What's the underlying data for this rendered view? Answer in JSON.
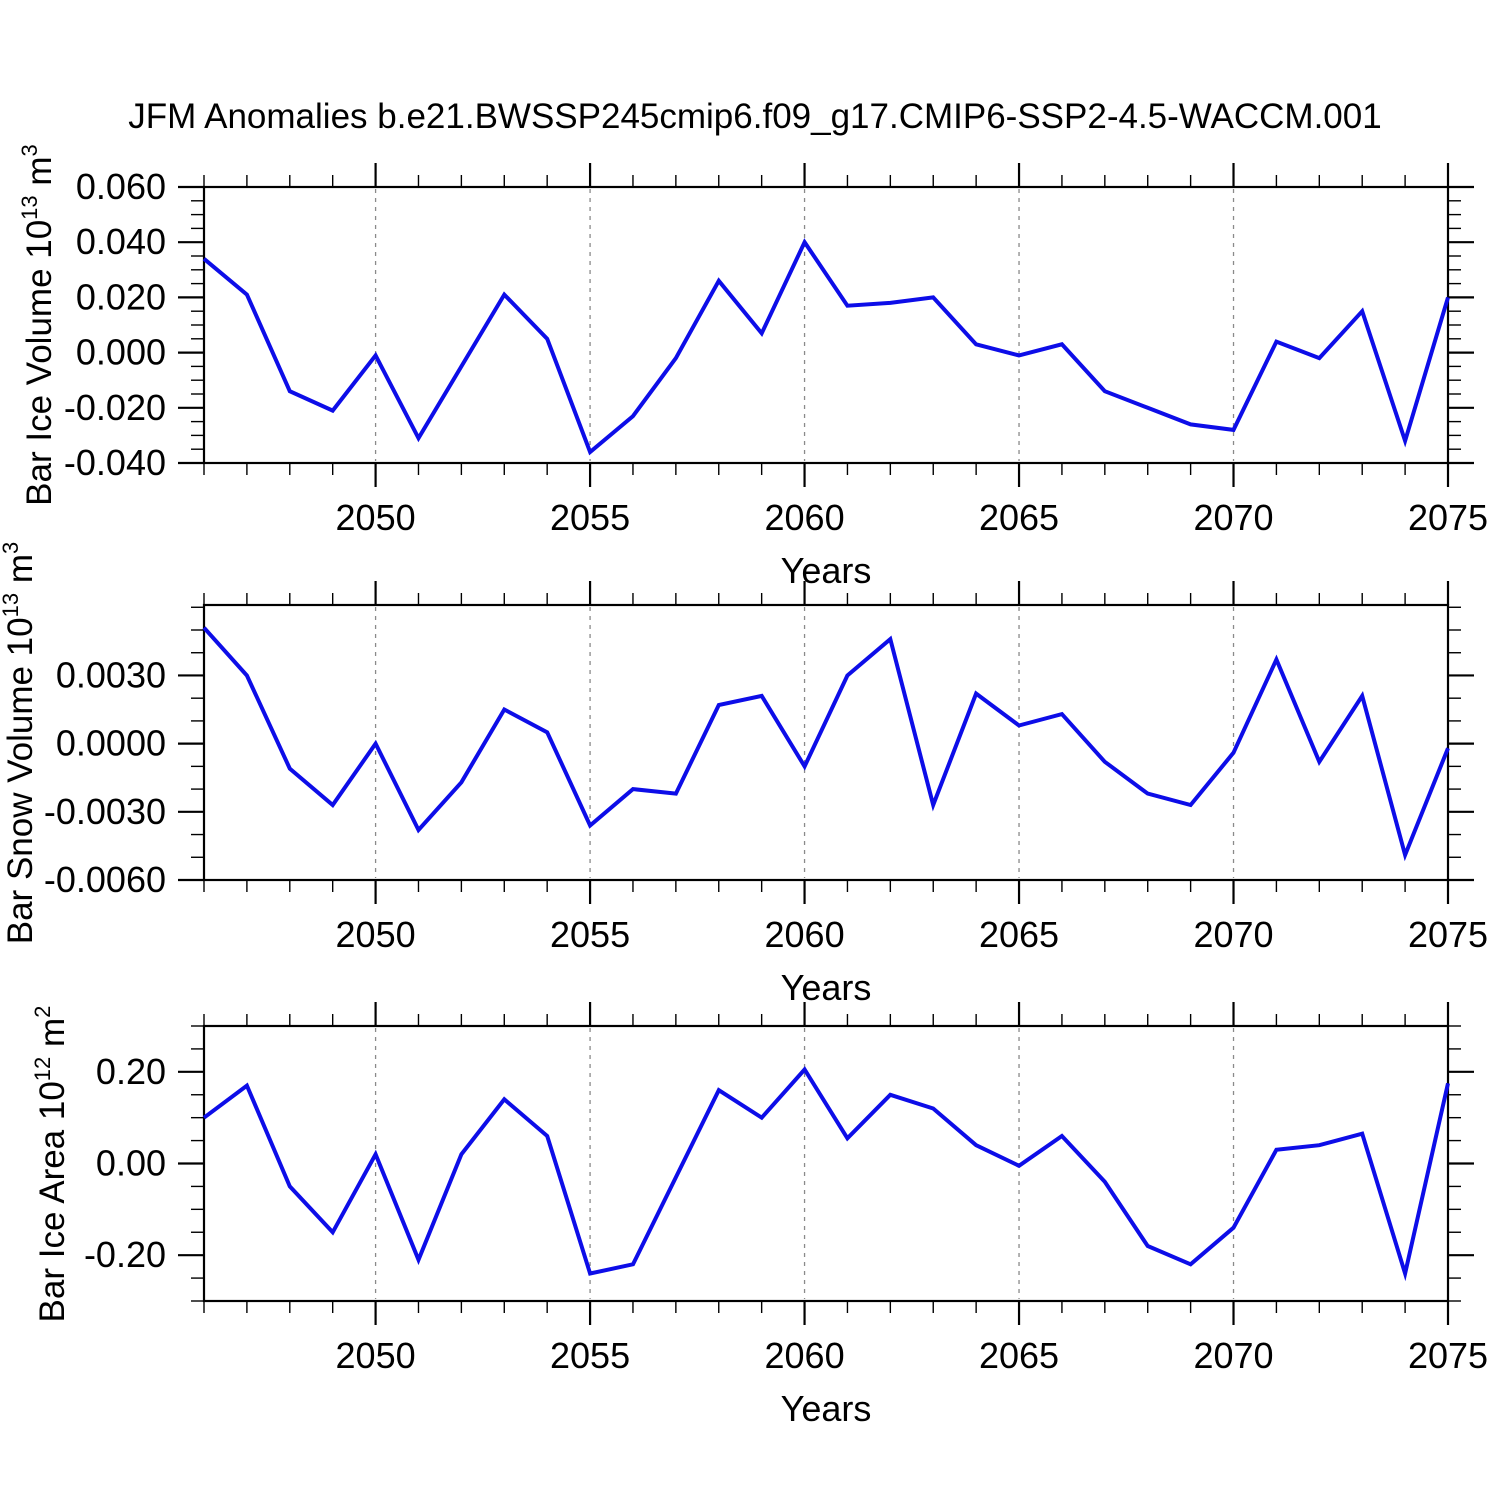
{
  "title": "JFM Anomalies b.e21.BWSSP245cmip6.f09_g17.CMIP6-SSP2-4.5-WACCM.001",
  "colors": {
    "line": "#0d0de8",
    "axis": "#000000",
    "grid": "#8a8a8a",
    "background": "#ffffff"
  },
  "x_axis": {
    "label": "Years",
    "years": [
      2046,
      2047,
      2048,
      2049,
      2050,
      2051,
      2052,
      2053,
      2054,
      2055,
      2056,
      2057,
      2058,
      2059,
      2060,
      2061,
      2062,
      2063,
      2064,
      2065,
      2066,
      2067,
      2068,
      2069,
      2070,
      2071,
      2072,
      2073,
      2074,
      2075
    ],
    "major_tick_years": [
      2050,
      2055,
      2060,
      2065,
      2070,
      2075
    ],
    "gridline_years": [
      2050,
      2055,
      2060,
      2065,
      2070
    ],
    "minor_tick_step_years": 1
  },
  "chart_data": [
    {
      "type": "line",
      "ylabel": "Bar Ice Volume 10^13 m^3",
      "ylabel_parts": {
        "main": "Bar Ice Volume 10",
        "exp": "13",
        "unit": " m",
        "unit_exp": "3"
      },
      "ylim": [
        -0.04,
        0.06
      ],
      "yticks": [
        0.06,
        0.04,
        0.02,
        0.0,
        -0.02,
        -0.04
      ],
      "ytick_labels": [
        "0.060",
        "0.040",
        "0.020",
        "0.000",
        "-0.020",
        "-0.040"
      ],
      "y_minor_step": 0.005,
      "values": [
        0.034,
        0.021,
        -0.014,
        -0.021,
        -0.001,
        -0.031,
        -0.005,
        0.021,
        0.005,
        -0.036,
        -0.023,
        -0.002,
        0.026,
        0.007,
        0.04,
        0.017,
        0.018,
        0.02,
        0.003,
        -0.001,
        0.003,
        -0.014,
        -0.02,
        -0.026,
        -0.028,
        0.004,
        -0.002,
        0.015,
        -0.032,
        0.02
      ]
    },
    {
      "type": "line",
      "ylabel": "Bar Snow Volume 10^13 m^3",
      "ylabel_parts": {
        "main": "Bar Snow Volume 10",
        "exp": "13",
        "unit": " m",
        "unit_exp": "3"
      },
      "ylim": [
        -0.006,
        0.0061
      ],
      "yticks": [
        0.003,
        0.0,
        -0.003,
        -0.006
      ],
      "ytick_labels": [
        "0.0030",
        "0.0000",
        "-0.0030",
        "-0.0060"
      ],
      "y_minor_step": 0.001,
      "values": [
        0.0051,
        0.003,
        -0.0011,
        -0.0027,
        0.0,
        -0.0038,
        -0.0017,
        0.0015,
        0.0005,
        -0.0036,
        -0.002,
        -0.0022,
        0.0017,
        0.0021,
        -0.001,
        0.003,
        0.0046,
        -0.0027,
        0.0022,
        0.0008,
        0.0013,
        -0.0008,
        -0.0022,
        -0.0027,
        -0.0004,
        0.0037,
        -0.0008,
        0.0021,
        -0.0049,
        -0.0002
      ]
    },
    {
      "type": "line",
      "ylabel": "Bar Ice Area 10^12 m^2",
      "ylabel_parts": {
        "main": "Bar Ice Area 10",
        "exp": "12",
        "unit": " m",
        "unit_exp": "2"
      },
      "ylim": [
        -0.3,
        0.3
      ],
      "yticks": [
        0.2,
        0.0,
        -0.2
      ],
      "ytick_labels": [
        "0.20",
        "0.00",
        "-0.20"
      ],
      "y_minor_step": 0.05,
      "values": [
        0.1,
        0.17,
        -0.05,
        -0.15,
        0.02,
        -0.21,
        0.02,
        0.14,
        0.06,
        -0.24,
        -0.22,
        -0.03,
        0.16,
        0.1,
        0.205,
        0.055,
        0.15,
        0.12,
        0.04,
        -0.005,
        0.06,
        -0.04,
        -0.18,
        -0.22,
        -0.14,
        0.03,
        0.04,
        0.065,
        -0.24,
        0.175
      ]
    }
  ]
}
